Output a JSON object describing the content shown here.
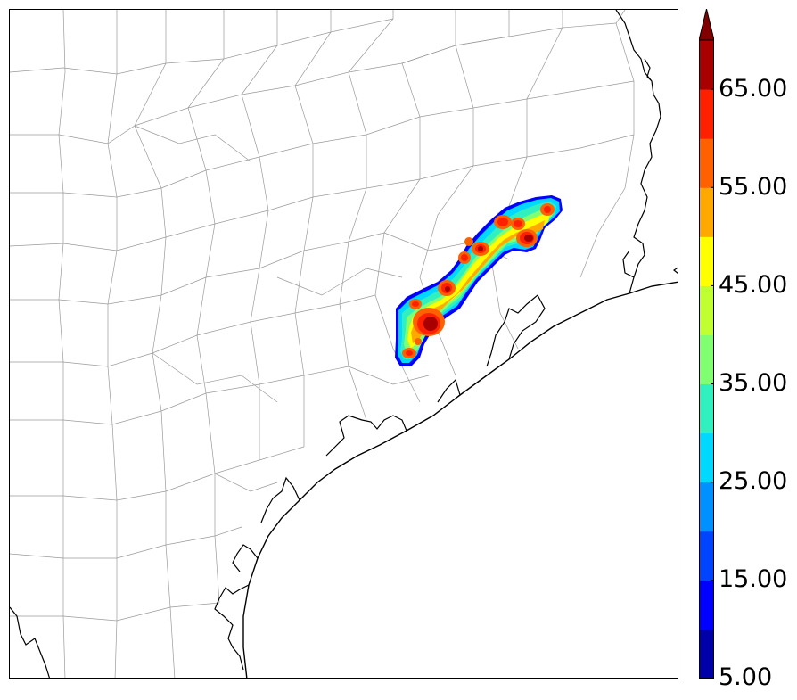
{
  "colorbar": {
    "ticks": [
      {
        "value": 5,
        "label": "5.00"
      },
      {
        "value": 15,
        "label": "15.00"
      },
      {
        "value": 25,
        "label": "25.00"
      },
      {
        "value": 35,
        "label": "35.00"
      },
      {
        "value": 45,
        "label": "45.00"
      },
      {
        "value": 55,
        "label": "55.00"
      },
      {
        "value": 65,
        "label": "65.00"
      }
    ],
    "levels": [
      5,
      10,
      15,
      20,
      25,
      30,
      35,
      40,
      45,
      50,
      55,
      60,
      65,
      70
    ],
    "colors": [
      "#0000a8",
      "#0000ff",
      "#0044ff",
      "#0090ff",
      "#00d8ff",
      "#30f0c0",
      "#80ff70",
      "#c0ff30",
      "#ffff00",
      "#ffa800",
      "#ff6000",
      "#ff2000",
      "#a80000"
    ],
    "extend": "max",
    "extend_color": "#800000"
  },
  "map": {
    "background": "#ffffff",
    "coastline_color": "#000000",
    "county_border_color": "#9a9a9a",
    "ocean_color": "#ffffff"
  }
}
